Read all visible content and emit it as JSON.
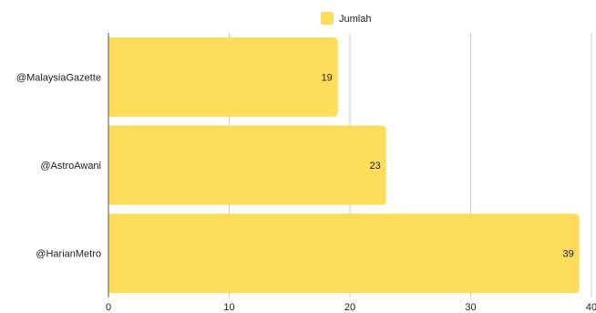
{
  "chart_data": {
    "type": "bar",
    "orientation": "horizontal",
    "categories": [
      "@MalaysiaGazette",
      "@AstroAwani",
      "@HarianMetro"
    ],
    "series": [
      {
        "name": "Jumlah",
        "values": [
          19,
          23,
          39
        ]
      }
    ],
    "xlim": [
      0,
      40
    ],
    "x_ticks": [
      0,
      10,
      20,
      30,
      40
    ],
    "grid": true,
    "legend_position": "top-center",
    "data_labels": true,
    "colors": {
      "bar": "#FFDD5C",
      "grid": "#CCCCCC",
      "axis": "#555555",
      "text": "#222222"
    }
  }
}
